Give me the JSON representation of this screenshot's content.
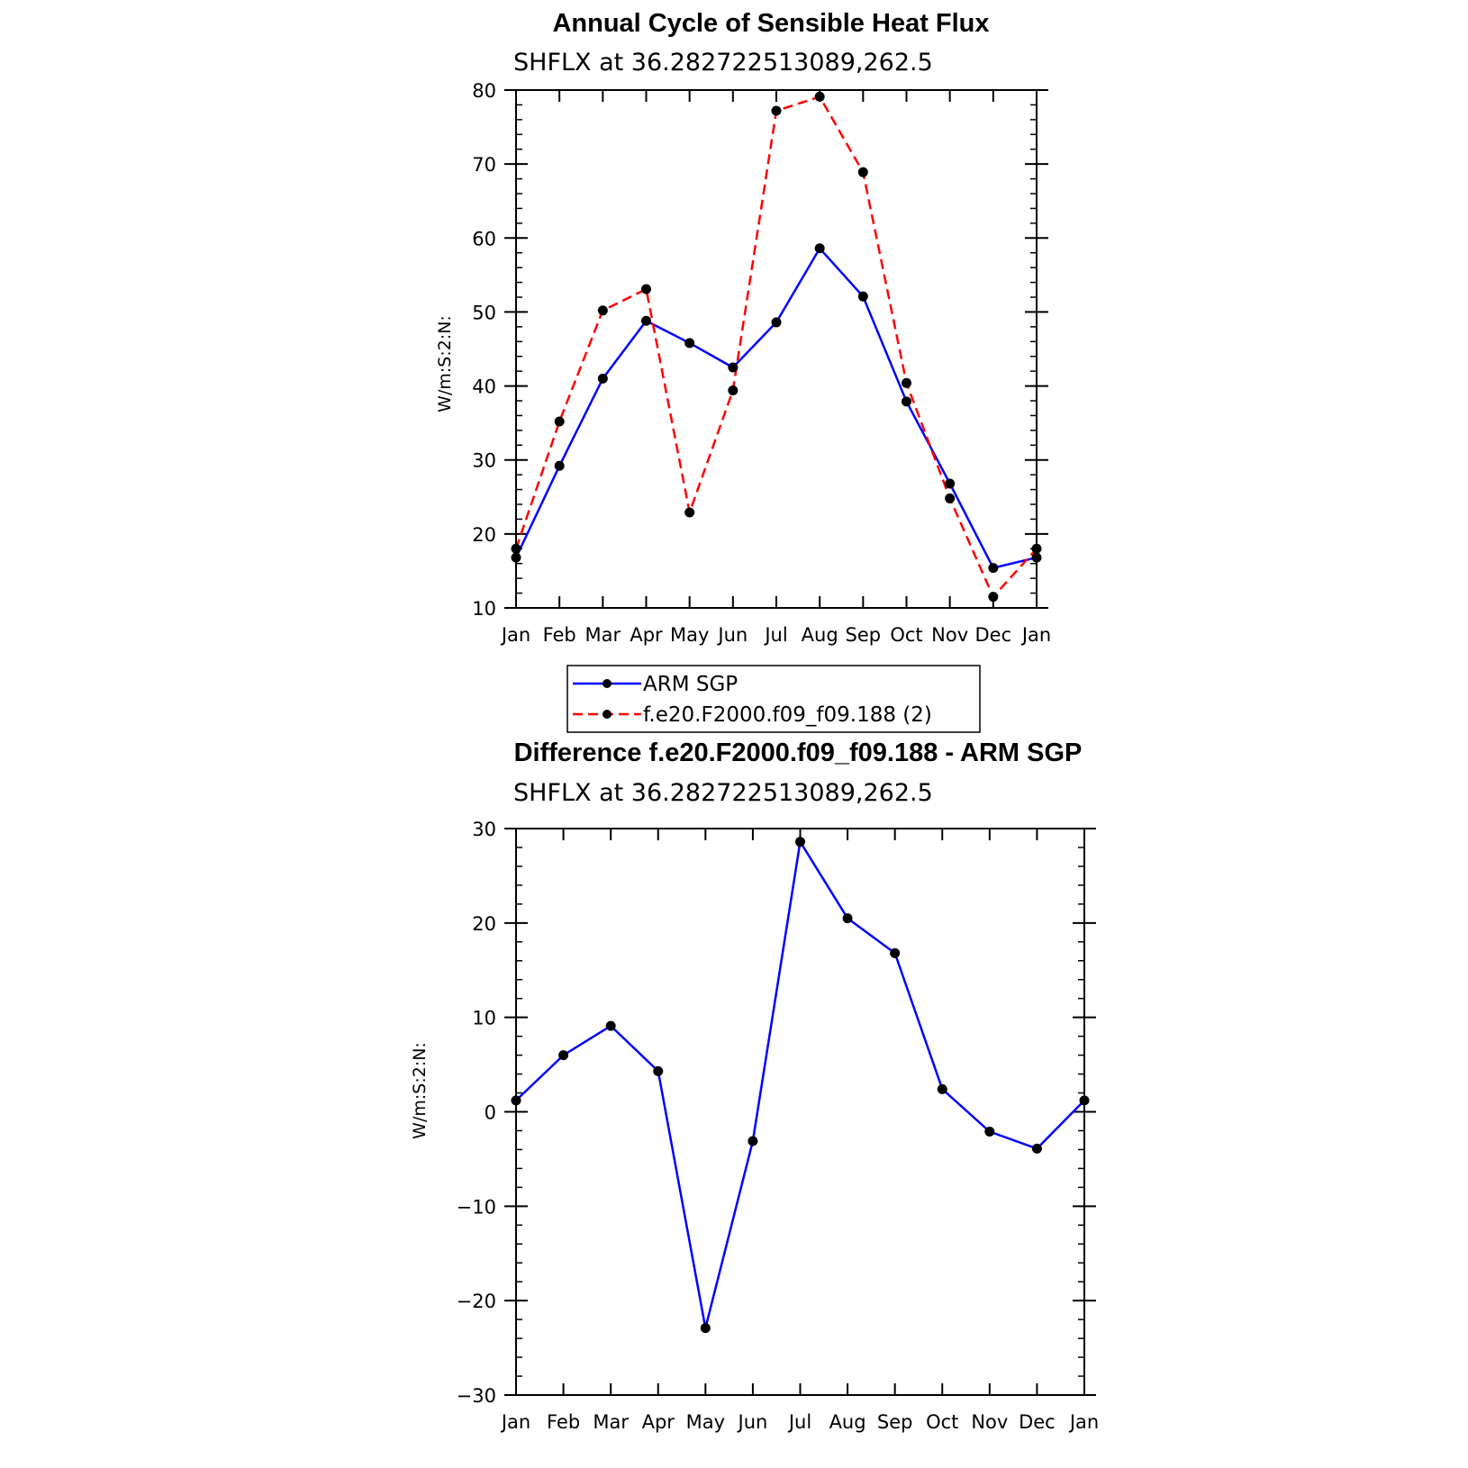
{
  "colors": {
    "arm": "#0000ff",
    "model": "#ff0000",
    "marker": "#000000",
    "axis": "#000000"
  },
  "legend": {
    "entries": [
      "ARM SGP",
      "f.e20.F2000.f09_f09.188 (2)"
    ]
  },
  "chart_data": [
    {
      "type": "line",
      "title": "Annual Cycle of Sensible Heat Flux",
      "subtitle": "SHFLX at 36.282722513089,262.5",
      "ylabel": "W/m:S:2:N:",
      "xlabel": "",
      "categories": [
        "Jan",
        "Feb",
        "Mar",
        "Apr",
        "May",
        "Jun",
        "Jul",
        "Aug",
        "Sep",
        "Oct",
        "Nov",
        "Dec",
        "Jan"
      ],
      "ylim": [
        10,
        80
      ],
      "yticks": [
        10,
        20,
        30,
        40,
        50,
        60,
        70,
        80
      ],
      "ytick_labels": [
        "10",
        "20",
        "30",
        "40",
        "50",
        "60",
        "70",
        "80"
      ],
      "legend_position": "bottom",
      "series": [
        {
          "name": "ARM SGP",
          "style": "solid",
          "color": "#0000ff",
          "values": [
            16.8,
            29.2,
            41.0,
            48.8,
            45.8,
            42.5,
            48.6,
            58.6,
            52.1,
            37.9,
            26.8,
            15.4,
            16.8
          ]
        },
        {
          "name": "f.e20.F2000.f09_f09.188 (2)",
          "style": "dashed",
          "color": "#ff0000",
          "values": [
            18.0,
            35.2,
            50.2,
            53.1,
            22.9,
            39.4,
            77.2,
            79.1,
            68.9,
            40.4,
            24.8,
            11.5,
            18.0
          ]
        }
      ]
    },
    {
      "type": "line",
      "title": "Difference f.e20.F2000.f09_f09.188 - ARM SGP",
      "subtitle": "SHFLX at 36.282722513089,262.5",
      "ylabel": "W/m:S:2:N:",
      "xlabel": "",
      "categories": [
        "Jan",
        "Feb",
        "Mar",
        "Apr",
        "May",
        "Jun",
        "Jul",
        "Aug",
        "Sep",
        "Oct",
        "Nov",
        "Dec",
        "Jan"
      ],
      "ylim": [
        -30,
        30
      ],
      "yticks": [
        -30,
        -20,
        -10,
        0,
        10,
        20,
        30
      ],
      "ytick_labels": [
        "−30",
        "−20",
        "−10",
        "0",
        "10",
        "20",
        "30"
      ],
      "series": [
        {
          "style": "solid",
          "color": "#0000ff",
          "values": [
            1.2,
            6.0,
            9.1,
            4.3,
            -22.9,
            -3.1,
            28.6,
            20.5,
            16.8,
            2.4,
            -2.1,
            -3.9,
            1.2
          ]
        }
      ]
    }
  ]
}
